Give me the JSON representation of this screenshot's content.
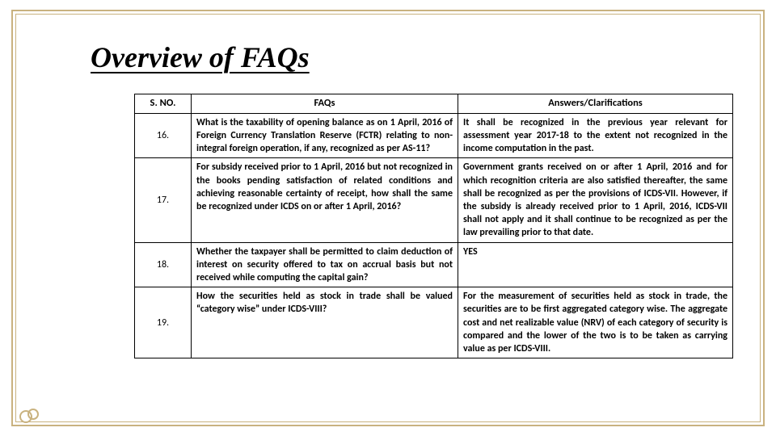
{
  "title": "Overview of FAQs",
  "table": {
    "headers": {
      "sno": "S. NO.",
      "faq": "FAQs",
      "ans": "Answers/Clarifications"
    },
    "rows": [
      {
        "sno": "16.",
        "faq": "What is the taxability of opening balance as on 1 April, 2016 of Foreign Currency Translation Reserve (FCTR) relating to non-integral foreign operation, if any, recognized as per AS-11?",
        "ans": "It shall be recognized in the previous year relevant for assessment year 2017-18 to the extent not recognized in the income computation in the past."
      },
      {
        "sno": "17.",
        "faq": "For subsidy received prior to 1 April, 2016 but not recognized in the books pending satisfaction of related conditions and achieving reasonable certainty of receipt, how shall the same be recognized under ICDS on or after 1 April, 2016?",
        "ans": "Government grants received on or after 1 April, 2016 and for which recognition criteria are also satisfied thereafter, the same shall be recognized as per the provisions of ICDS-VII.\nHowever, if the subsidy is already received prior to 1 April, 2016, ICDS-VII shall not apply and it shall continue to be recognized as per the law prevailing prior to that date."
      },
      {
        "sno": "18.",
        "faq": "Whether the taxpayer shall be permitted to claim deduction of interest on security offered to tax on accrual basis but not received while computing the capital gain?",
        "ans": "YES"
      },
      {
        "sno": "19.",
        "faq": "How the securities held as stock in trade shall be valued “category wise” under ICDS-VIII?",
        "ans": "For the measurement of securities held as stock in trade, the securities are to be first aggregated category wise. The aggregate cost and net realizable value (NRV) of each category of security is compared and the lower of the two is to be taken as carrying value as per ICDS-VIII."
      }
    ]
  }
}
